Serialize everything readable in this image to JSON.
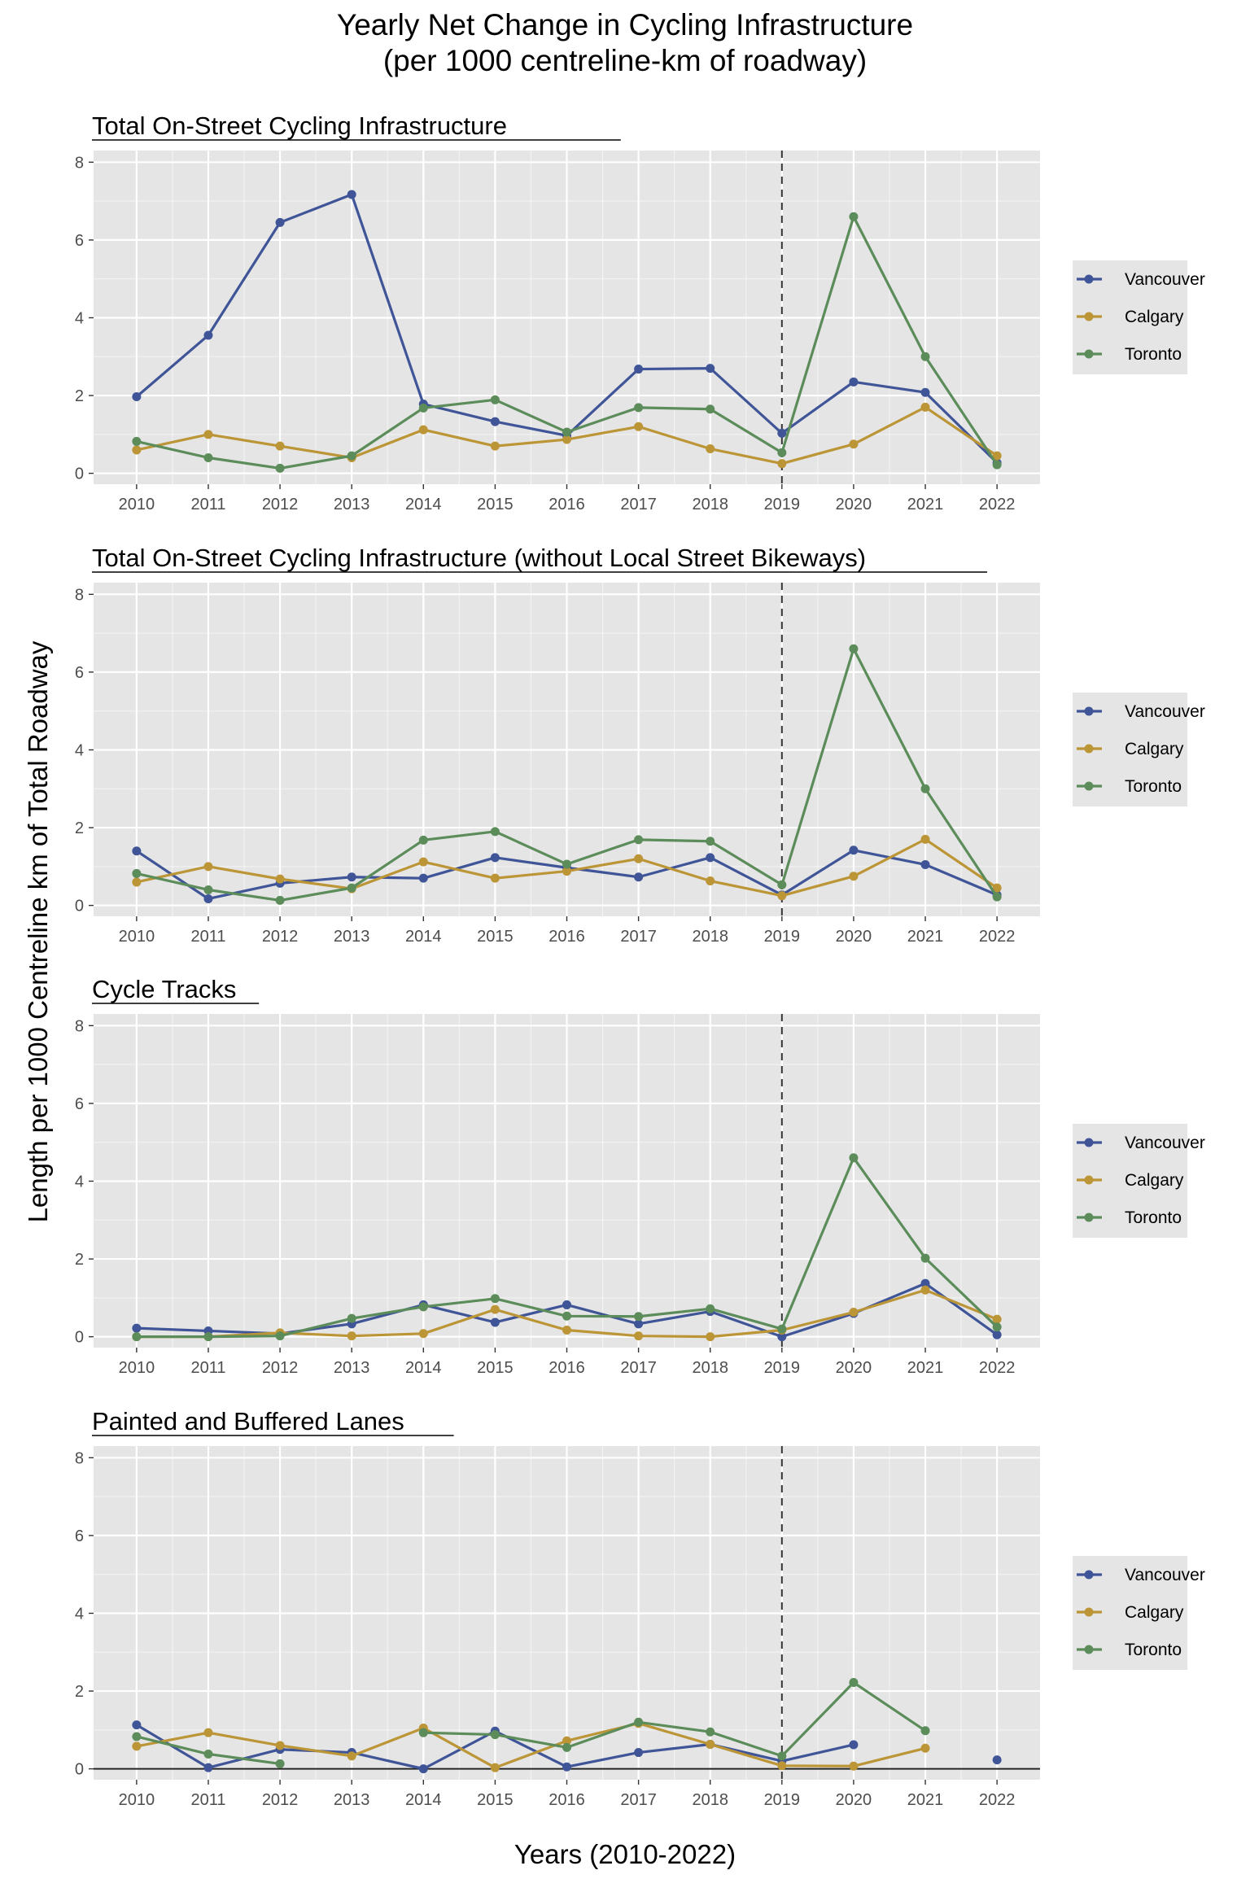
{
  "figure": {
    "title_line1": "Yearly Net Change in Cycling Infrastructure",
    "title_line2": "(per 1000 centreline-km of roadway)",
    "xlabel": "Years (2010-2022)",
    "ylabel": "Length per 1000 Centreline km of Total Roadway"
  },
  "colors": {
    "Vancouver": "#3f5597",
    "Calgary": "#bb9536",
    "Toronto": "#5b8c5a",
    "panel_bg": "#e5e5e5",
    "grid": "#ffffff",
    "vline": "#333333"
  },
  "chart_data": [
    {
      "type": "line",
      "title": "Total On-Street Cycling Infrastructure",
      "x": [
        2010,
        2011,
        2012,
        2013,
        2014,
        2015,
        2016,
        2017,
        2018,
        2019,
        2020,
        2021,
        2022
      ],
      "ylim": [
        0,
        8
      ],
      "yticks": [
        0,
        2,
        4,
        6,
        8
      ],
      "vline_x": 2019,
      "hline_zero": false,
      "legend_position": "right",
      "series": [
        {
          "name": "Vancouver",
          "values": [
            1.97,
            3.55,
            6.45,
            7.17,
            1.78,
            1.33,
            0.97,
            2.68,
            2.7,
            1.03,
            2.35,
            2.08,
            0.27
          ]
        },
        {
          "name": "Calgary",
          "values": [
            0.6,
            1.0,
            0.7,
            0.4,
            1.12,
            0.7,
            0.87,
            1.2,
            0.63,
            0.25,
            0.75,
            1.7,
            0.45
          ]
        },
        {
          "name": "Toronto",
          "values": [
            0.82,
            0.4,
            0.13,
            0.45,
            1.68,
            1.89,
            1.06,
            1.69,
            1.65,
            0.53,
            6.6,
            3.0,
            0.22
          ]
        }
      ]
    },
    {
      "type": "line",
      "title": "Total On-Street Cycling Infrastructure (without Local Street Bikeways)",
      "x": [
        2010,
        2011,
        2012,
        2013,
        2014,
        2015,
        2016,
        2017,
        2018,
        2019,
        2020,
        2021,
        2022
      ],
      "ylim": [
        0,
        8
      ],
      "yticks": [
        0,
        2,
        4,
        6,
        8
      ],
      "vline_x": 2019,
      "hline_zero": false,
      "legend_position": "right",
      "series": [
        {
          "name": "Vancouver",
          "values": [
            1.4,
            0.17,
            0.57,
            0.73,
            0.7,
            1.23,
            0.97,
            0.73,
            1.23,
            0.27,
            1.42,
            1.05,
            0.27
          ]
        },
        {
          "name": "Calgary",
          "values": [
            0.6,
            1.0,
            0.68,
            0.43,
            1.12,
            0.7,
            0.88,
            1.2,
            0.63,
            0.25,
            0.75,
            1.7,
            0.45
          ]
        },
        {
          "name": "Toronto",
          "values": [
            0.82,
            0.4,
            0.13,
            0.45,
            1.68,
            1.9,
            1.06,
            1.69,
            1.65,
            0.53,
            6.6,
            3.0,
            0.22
          ]
        }
      ]
    },
    {
      "type": "line",
      "title": "Cycle Tracks",
      "x": [
        2010,
        2011,
        2012,
        2013,
        2014,
        2015,
        2016,
        2017,
        2018,
        2019,
        2020,
        2021,
        2022
      ],
      "ylim": [
        0,
        8
      ],
      "yticks": [
        0,
        2,
        4,
        6,
        8
      ],
      "vline_x": 2019,
      "hline_zero": false,
      "legend_position": "right",
      "series": [
        {
          "name": "Vancouver",
          "values": [
            0.22,
            0.15,
            0.08,
            0.33,
            0.82,
            0.37,
            0.82,
            0.33,
            0.65,
            0.0,
            0.6,
            1.37,
            0.05
          ]
        },
        {
          "name": "Calgary",
          "values": [
            0.0,
            0.0,
            0.1,
            0.02,
            0.08,
            0.7,
            0.17,
            0.02,
            0.0,
            0.17,
            0.63,
            1.2,
            0.45
          ]
        },
        {
          "name": "Toronto",
          "values": [
            0.0,
            0.0,
            0.02,
            0.47,
            0.77,
            0.98,
            0.53,
            0.52,
            0.72,
            0.2,
            4.6,
            2.02,
            0.25
          ]
        }
      ]
    },
    {
      "type": "line",
      "title": "Painted and Buffered Lanes",
      "x": [
        2010,
        2011,
        2012,
        2013,
        2014,
        2015,
        2016,
        2017,
        2018,
        2019,
        2020,
        2021,
        2022
      ],
      "ylim": [
        0,
        8
      ],
      "yticks": [
        0,
        2,
        4,
        6,
        8
      ],
      "vline_x": 2019,
      "hline_zero": true,
      "legend_position": "right",
      "series": [
        {
          "name": "Vancouver",
          "values": [
            1.13,
            0.03,
            0.5,
            0.42,
            0.0,
            0.97,
            0.05,
            0.42,
            0.63,
            0.2,
            0.62,
            null,
            0.23
          ]
        },
        {
          "name": "Calgary",
          "values": [
            0.58,
            0.93,
            0.6,
            0.33,
            1.05,
            0.03,
            0.72,
            1.17,
            0.63,
            0.08,
            0.07,
            0.53,
            null
          ]
        },
        {
          "name": "Toronto",
          "values": [
            0.83,
            0.38,
            0.13,
            null,
            0.93,
            0.88,
            0.55,
            1.2,
            0.95,
            0.33,
            2.22,
            0.98,
            null
          ]
        }
      ]
    }
  ]
}
